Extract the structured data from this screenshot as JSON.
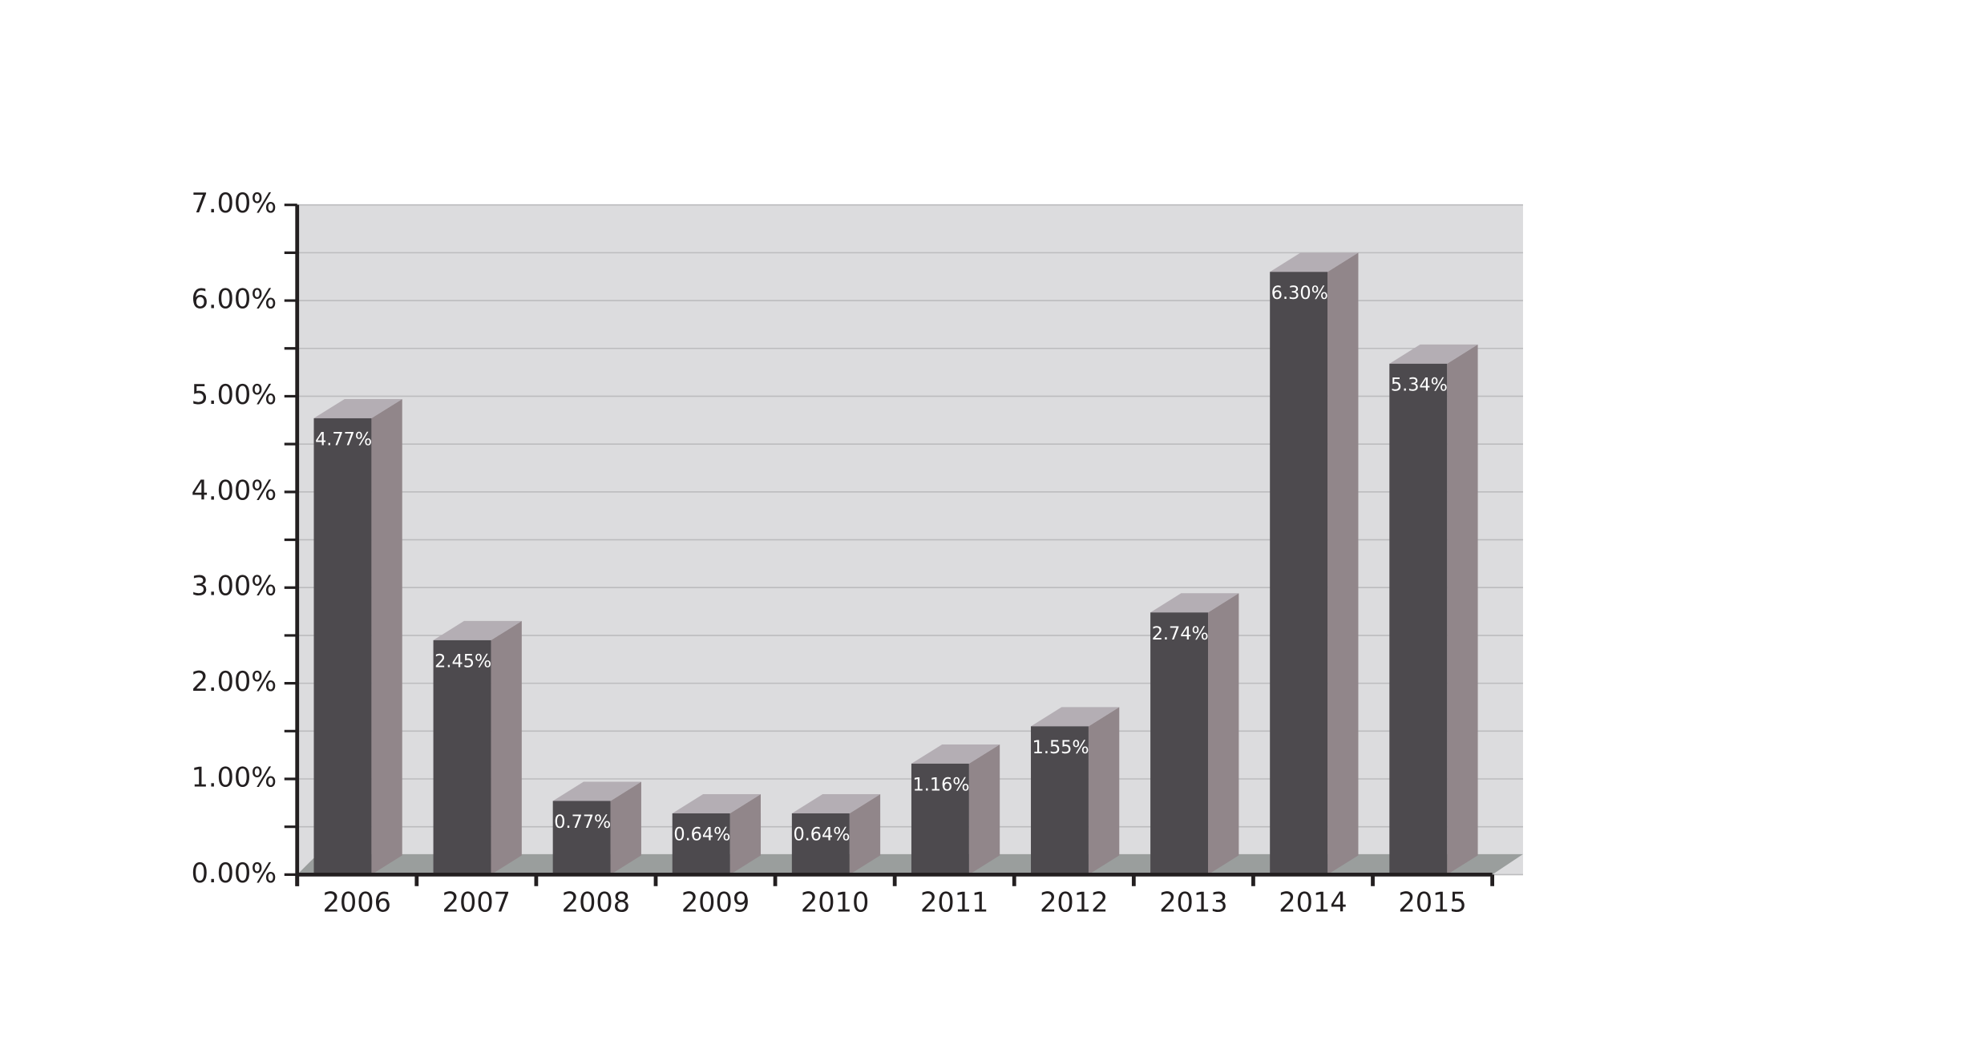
{
  "chart_data": {
    "type": "bar3d",
    "categories": [
      "2006",
      "2007",
      "2008",
      "2009",
      "2010",
      "2011",
      "2012",
      "2013",
      "2014",
      "2015"
    ],
    "values": [
      4.77,
      2.45,
      0.77,
      0.64,
      0.64,
      1.16,
      1.55,
      2.74,
      6.3,
      5.34
    ],
    "value_labels": [
      "4.77%",
      "2.45%",
      "0.77%",
      "0.64%",
      "0.64%",
      "1.16%",
      "1.55%",
      "2.74%",
      "6.30%",
      "5.34%"
    ],
    "color": "#4d4a4e",
    "side_color": "#91868a",
    "top_color": "#b4aeb4",
    "ylim": [
      0,
      7
    ],
    "yticks": [
      {
        "value": 0,
        "label": "0.00%"
      },
      {
        "value": 1,
        "label": "1.00%"
      },
      {
        "value": 2,
        "label": "2.00%"
      },
      {
        "value": 3,
        "label": "3.00%"
      },
      {
        "value": 4,
        "label": "4.00%"
      },
      {
        "value": 5,
        "label": "5.00%"
      },
      {
        "value": 6,
        "label": "6.00%"
      },
      {
        "value": 7,
        "label": "7.00%"
      }
    ],
    "minor_yticks": [
      0.5,
      1.5,
      2.5,
      3.5,
      4.5,
      5.5,
      6.5
    ],
    "grid": true
  }
}
